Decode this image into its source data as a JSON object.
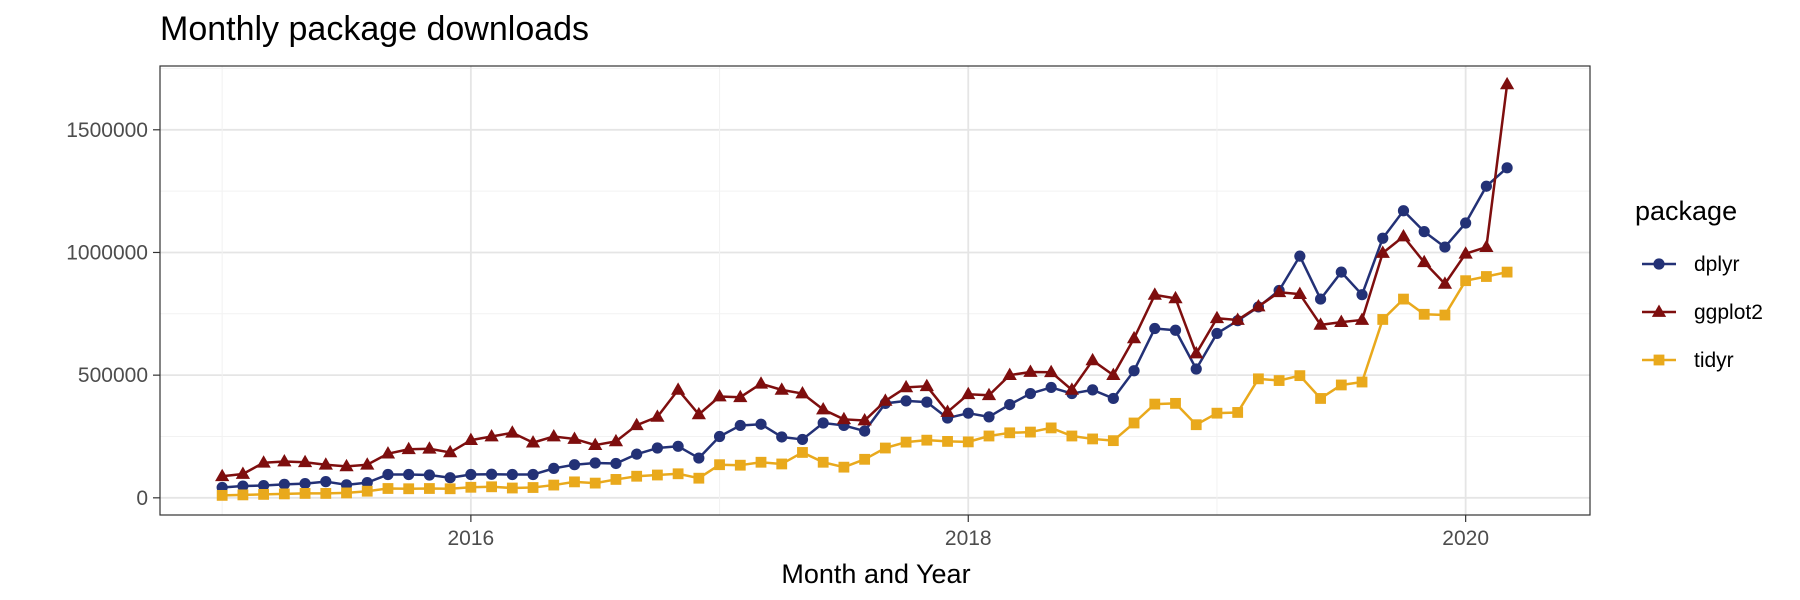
{
  "chart_data": {
    "type": "line",
    "title": "Monthly package downloads",
    "xlabel": "Month and Year",
    "ylabel": "",
    "x_start": "2015-01",
    "x_step": "month",
    "x_ticks": [
      2016,
      2018,
      2020
    ],
    "y_ticks": [
      0,
      500000,
      1000000,
      1500000
    ],
    "ylim": [
      -70000,
      1760000
    ],
    "xlim": [
      "2014-10",
      "2020-07"
    ],
    "grid": true,
    "legend": {
      "title": "package",
      "position": "right"
    },
    "series": [
      {
        "name": "dplyr",
        "color": "#233176",
        "marker": "circle",
        "values": [
          42000,
          48000,
          50000,
          55000,
          58000,
          66000,
          53000,
          62000,
          95000,
          95000,
          93000,
          82000,
          95000,
          96000,
          95000,
          95000,
          120000,
          135000,
          142000,
          140000,
          178000,
          203000,
          210000,
          162000,
          250000,
          295000,
          300000,
          248000,
          238000,
          305000,
          295000,
          272000,
          385000,
          395000,
          390000,
          325000,
          345000,
          330000,
          380000,
          425000,
          450000,
          425000,
          440000,
          405000,
          518000,
          690000,
          683000,
          525000,
          670000,
          722000,
          778000,
          845000,
          985000,
          810000,
          920000,
          828000,
          1058000,
          1170000,
          1085000,
          1022000,
          1120000,
          1270000,
          1345000
        ]
      },
      {
        "name": "ggplot2",
        "color": "#7e0e0e",
        "marker": "triangle",
        "values": [
          88000,
          97000,
          143000,
          148000,
          145000,
          135000,
          128000,
          135000,
          180000,
          198000,
          200000,
          185000,
          235000,
          250000,
          265000,
          225000,
          250000,
          240000,
          215000,
          230000,
          296000,
          330000,
          440000,
          340000,
          413000,
          410000,
          465000,
          440000,
          425000,
          360000,
          320000,
          315000,
          395000,
          450000,
          455000,
          350000,
          422000,
          418000,
          500000,
          513000,
          512000,
          440000,
          560000,
          500000,
          650000,
          827000,
          813000,
          588000,
          732000,
          725000,
          780000,
          838000,
          830000,
          705000,
          716000,
          725000,
          998000,
          1065000,
          960000,
          872000,
          995000,
          1022000,
          1685000
        ]
      },
      {
        "name": "tidyr",
        "color": "#e9a91c",
        "marker": "square",
        "values": [
          10000,
          12000,
          14000,
          16000,
          18000,
          18000,
          20000,
          27000,
          38000,
          37000,
          38000,
          37000,
          43000,
          45000,
          40000,
          42000,
          52000,
          65000,
          60000,
          75000,
          88000,
          93000,
          98000,
          80000,
          135000,
          133000,
          145000,
          138000,
          185000,
          145000,
          125000,
          157000,
          203000,
          227000,
          235000,
          230000,
          228000,
          252000,
          265000,
          268000,
          285000,
          252000,
          240000,
          233000,
          305000,
          382000,
          385000,
          298000,
          345000,
          348000,
          485000,
          478000,
          498000,
          405000,
          460000,
          472000,
          727000,
          810000,
          748000,
          745000,
          885000,
          902000,
          920000
        ]
      }
    ]
  }
}
